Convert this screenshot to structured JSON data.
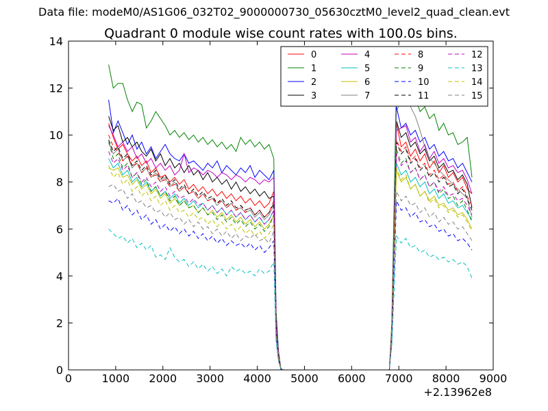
{
  "figure": {
    "suptitle": "Data file: modeM0/AS1G06_032T02_9000000730_05630cztM0_level2_quad_clean.evt"
  },
  "chart_data": {
    "type": "line",
    "title": "Quadrant 0 module wise count rates with 100.0s bins.",
    "xlabel": "",
    "ylabel": "",
    "xlim": [
      0,
      9000
    ],
    "ylim": [
      0,
      14
    ],
    "x_offset_label": "+2.13962e8",
    "x_ticks": [
      0,
      1000,
      2000,
      3000,
      4000,
      5000,
      6000,
      7000,
      8000,
      9000
    ],
    "y_ticks": [
      0,
      2,
      4,
      6,
      8,
      10,
      12,
      14
    ],
    "grid": false,
    "legend_position": "top-right",
    "legend_columns": 4,
    "x": [
      850,
      950,
      1050,
      1150,
      1250,
      1350,
      1450,
      1550,
      1650,
      1750,
      1850,
      1950,
      2050,
      2150,
      2250,
      2350,
      2450,
      2550,
      2650,
      2750,
      2850,
      2950,
      3050,
      3150,
      3250,
      3350,
      3450,
      3550,
      3650,
      3750,
      3850,
      3950,
      4050,
      4150,
      4250,
      4350,
      4400,
      4450,
      4500,
      4550,
      4600,
      4700,
      4800,
      4900,
      5000,
      5500,
      6000,
      6500,
      6800,
      6850,
      6950,
      7050,
      7150,
      7250,
      7350,
      7450,
      7550,
      7650,
      7750,
      7850,
      7950,
      8050,
      8150,
      8250,
      8350,
      8450,
      8550
    ],
    "series": [
      {
        "name": "0",
        "color": "#ff0000",
        "dash": "solid",
        "values": [
          10.5,
          9.9,
          9.4,
          9.6,
          9.2,
          8.9,
          9.1,
          8.7,
          8.9,
          8.4,
          8.6,
          8.2,
          8.3,
          8.0,
          8.2,
          7.9,
          8.1,
          7.7,
          7.9,
          7.6,
          7.8,
          7.5,
          7.7,
          7.4,
          7.6,
          7.3,
          7.5,
          7.2,
          7.4,
          7.1,
          7.3,
          7.0,
          7.2,
          6.9,
          7.1,
          7.6,
          2.0,
          0.6,
          0.05,
          0,
          0,
          0,
          0,
          0,
          0,
          0,
          0,
          0,
          0,
          1.5,
          10.5,
          9.5,
          9.7,
          9.1,
          9.4,
          8.9,
          9.2,
          8.6,
          8.9,
          8.4,
          8.7,
          8.2,
          8.4,
          8.0,
          8.2,
          7.7,
          7.5
        ]
      },
      {
        "name": "1",
        "color": "#008000",
        "dash": "solid",
        "values": [
          13.0,
          12.0,
          12.2,
          12.2,
          11.5,
          11.0,
          11.4,
          11.3,
          10.3,
          10.6,
          11.0,
          10.7,
          10.4,
          10.0,
          10.2,
          9.9,
          10.1,
          9.8,
          10.0,
          9.7,
          9.9,
          9.6,
          9.8,
          9.5,
          9.7,
          9.4,
          9.6,
          9.3,
          9.9,
          9.6,
          9.8,
          9.5,
          9.7,
          9.4,
          9.6,
          9.0,
          2.5,
          0.8,
          0.06,
          0,
          0,
          0,
          0,
          0,
          0,
          0,
          0,
          0,
          0,
          2.0,
          12.3,
          11.8,
          12.0,
          11.3,
          11.6,
          11.0,
          11.2,
          10.7,
          10.9,
          10.2,
          10.5,
          10.0,
          10.1,
          9.6,
          9.7,
          9.9,
          8.2
        ]
      },
      {
        "name": "2",
        "color": "#0000ff",
        "dash": "solid",
        "values": [
          11.5,
          10.1,
          10.6,
          10.1,
          9.6,
          10.0,
          9.4,
          9.7,
          9.2,
          9.5,
          9.0,
          9.3,
          9.6,
          9.2,
          9.0,
          8.9,
          9.2,
          8.8,
          8.9,
          8.7,
          8.5,
          8.8,
          8.6,
          8.9,
          8.4,
          8.7,
          8.5,
          8.3,
          8.6,
          8.4,
          8.7,
          8.2,
          8.5,
          8.3,
          8.1,
          8.5,
          2.2,
          0.7,
          0.05,
          0,
          0,
          0,
          0,
          0,
          0,
          0,
          0,
          0,
          0,
          1.8,
          11.2,
          10.3,
          10.5,
          10.0,
          10.2,
          9.7,
          9.9,
          9.4,
          9.6,
          9.1,
          9.3,
          8.9,
          9.0,
          8.6,
          8.8,
          8.4,
          8.0
        ]
      },
      {
        "name": "3",
        "color": "#000000",
        "dash": "solid",
        "values": [
          10.8,
          10.2,
          10.4,
          9.7,
          9.9,
          9.5,
          9.7,
          9.3,
          9.1,
          9.4,
          8.9,
          9.2,
          8.7,
          9.0,
          8.6,
          8.8,
          8.4,
          8.7,
          8.3,
          8.5,
          8.1,
          8.4,
          8.0,
          8.2,
          7.9,
          8.1,
          7.7,
          8.0,
          7.6,
          7.8,
          7.5,
          7.7,
          7.4,
          7.6,
          7.3,
          7.4,
          1.9,
          0.6,
          0.05,
          0,
          0,
          0,
          0,
          0,
          0,
          0,
          0,
          0,
          0,
          1.6,
          10.6,
          9.9,
          10.1,
          9.5,
          9.7,
          9.2,
          9.4,
          8.9,
          9.1,
          8.6,
          8.8,
          8.4,
          8.5,
          8.1,
          8.3,
          7.9,
          6.9
        ]
      },
      {
        "name": "4",
        "color": "#bf00bf",
        "dash": "solid",
        "values": [
          10.4,
          10.0,
          9.5,
          9.7,
          9.3,
          9.5,
          9.0,
          9.2,
          8.8,
          9.0,
          8.6,
          8.8,
          8.5,
          8.7,
          8.3,
          8.5,
          9.2,
          8.4,
          8.6,
          8.5,
          8.3,
          8.5,
          8.4,
          8.2,
          8.4,
          8.3,
          8.1,
          8.3,
          8.2,
          8.0,
          8.2,
          8.1,
          7.9,
          8.1,
          8.0,
          8.2,
          2.1,
          0.7,
          0.05,
          0,
          0,
          0,
          0,
          0,
          0,
          0,
          0,
          0,
          0,
          1.7,
          10.2,
          10.3,
          10.4,
          9.7,
          9.9,
          9.3,
          9.6,
          9.0,
          9.3,
          8.8,
          9.0,
          8.6,
          8.7,
          8.4,
          8.5,
          8.1,
          7.5
        ]
      },
      {
        "name": "5",
        "color": "#00bfbf",
        "dash": "solid",
        "values": [
          9.0,
          8.6,
          8.8,
          8.3,
          8.5,
          8.0,
          8.2,
          7.8,
          8.0,
          7.6,
          7.8,
          7.4,
          7.6,
          7.3,
          7.5,
          7.1,
          7.3,
          7.0,
          7.2,
          6.9,
          7.1,
          6.8,
          7.0,
          6.7,
          6.9,
          6.6,
          6.8,
          6.5,
          6.7,
          6.4,
          6.6,
          6.3,
          6.5,
          6.2,
          6.4,
          6.8,
          1.8,
          0.5,
          0.04,
          0,
          0,
          0,
          0,
          0,
          0,
          0,
          0,
          0,
          0,
          1.4,
          8.8,
          8.3,
          8.5,
          8.0,
          8.2,
          7.8,
          8.0,
          7.5,
          7.7,
          7.3,
          7.5,
          7.1,
          7.2,
          6.9,
          7.0,
          6.7,
          6.4
        ]
      },
      {
        "name": "6",
        "color": "#bfbf00",
        "dash": "solid",
        "values": [
          8.6,
          8.5,
          8.6,
          8.2,
          8.3,
          7.9,
          8.1,
          7.7,
          7.9,
          7.5,
          7.7,
          7.3,
          7.5,
          7.1,
          7.3,
          7.0,
          7.2,
          6.9,
          7.0,
          6.7,
          6.9,
          6.6,
          6.8,
          6.5,
          6.7,
          6.4,
          6.6,
          6.3,
          6.5,
          6.2,
          6.4,
          6.1,
          6.3,
          6.0,
          6.2,
          6.6,
          1.7,
          0.5,
          0.04,
          0,
          0,
          0,
          0,
          0,
          0,
          0,
          0,
          0,
          0,
          1.4,
          8.5,
          8.0,
          8.2,
          7.7,
          7.9,
          7.4,
          7.6,
          7.2,
          7.4,
          7.0,
          7.1,
          6.8,
          6.9,
          6.6,
          6.7,
          6.4,
          6.0
        ]
      },
      {
        "name": "7",
        "color": "#808080",
        "dash": "solid",
        "values": [
          9.7,
          9.2,
          9.4,
          8.9,
          9.1,
          8.6,
          8.8,
          8.4,
          8.6,
          8.2,
          8.4,
          8.0,
          8.2,
          7.8,
          8.0,
          7.6,
          7.8,
          7.5,
          7.6,
          7.3,
          7.5,
          7.2,
          7.3,
          7.0,
          7.2,
          6.9,
          7.1,
          6.8,
          6.9,
          6.7,
          6.8,
          6.5,
          6.7,
          6.4,
          6.6,
          7.0,
          1.8,
          0.6,
          0.04,
          0,
          0,
          0,
          0,
          0,
          0,
          0,
          0,
          0,
          0,
          1.9,
          11.0,
          11.5,
          12.2,
          11.2,
          10.8,
          10.2,
          9.5,
          9.0,
          8.8,
          8.5,
          8.3,
          8.1,
          7.9,
          7.7,
          7.5,
          7.3,
          6.5
        ]
      },
      {
        "name": "8",
        "color": "#ff0000",
        "dash": "dashed",
        "values": [
          10.0,
          9.5,
          9.3,
          8.9,
          9.1,
          8.7,
          8.8,
          8.4,
          8.6,
          8.2,
          8.3,
          8.0,
          8.1,
          7.8,
          7.9,
          7.6,
          7.8,
          7.5,
          7.6,
          7.3,
          7.5,
          7.2,
          7.3,
          7.1,
          7.2,
          6.9,
          7.1,
          6.8,
          7.0,
          6.7,
          6.9,
          6.6,
          6.8,
          6.5,
          6.7,
          7.2,
          1.9,
          0.6,
          0.05,
          0,
          0,
          0,
          0,
          0,
          0,
          0,
          0,
          0,
          0,
          1.5,
          9.8,
          9.3,
          9.5,
          8.9,
          9.1,
          8.6,
          8.8,
          8.3,
          8.5,
          8.1,
          8.3,
          7.9,
          8.0,
          7.6,
          7.8,
          7.4,
          7.0
        ]
      },
      {
        "name": "9",
        "color": "#008000",
        "dash": "dashed",
        "values": [
          9.7,
          9.0,
          9.2,
          8.6,
          8.8,
          8.2,
          8.4,
          7.9,
          8.1,
          7.6,
          7.8,
          7.4,
          7.6,
          7.2,
          7.4,
          7.0,
          7.2,
          6.9,
          7.0,
          6.7,
          6.9,
          6.6,
          6.7,
          6.4,
          6.6,
          6.3,
          6.5,
          6.2,
          6.4,
          6.1,
          6.3,
          6.0,
          6.2,
          5.9,
          6.1,
          6.6,
          1.7,
          0.5,
          0.04,
          0,
          0,
          0,
          0,
          0,
          0,
          0,
          0,
          0,
          0,
          1.4,
          9.4,
          8.8,
          9.0,
          8.4,
          8.6,
          8.1,
          8.3,
          7.8,
          8.0,
          7.5,
          7.7,
          7.3,
          7.4,
          7.0,
          7.2,
          6.8,
          6.3
        ]
      },
      {
        "name": "10",
        "color": "#0000ff",
        "dash": "dashed",
        "values": [
          7.2,
          7.1,
          7.3,
          6.8,
          7.0,
          6.6,
          6.8,
          6.4,
          6.6,
          6.2,
          6.4,
          6.0,
          6.2,
          5.9,
          6.1,
          5.8,
          6.0,
          5.7,
          5.9,
          5.6,
          5.8,
          5.5,
          5.7,
          5.4,
          5.6,
          5.3,
          5.5,
          5.3,
          5.4,
          5.2,
          5.4,
          5.1,
          5.3,
          5.0,
          5.2,
          5.5,
          1.4,
          0.4,
          0.03,
          0,
          0,
          0,
          0,
          0,
          0,
          0,
          0,
          0,
          0,
          1.2,
          7.2,
          6.8,
          6.9,
          6.5,
          6.7,
          6.3,
          6.4,
          6.1,
          6.2,
          5.9,
          6.0,
          5.7,
          5.8,
          5.5,
          5.6,
          5.4,
          5.1
        ]
      },
      {
        "name": "11",
        "color": "#000000",
        "dash": "dashed",
        "values": [
          9.8,
          9.3,
          9.5,
          9.0,
          9.2,
          8.7,
          8.9,
          8.5,
          8.7,
          8.3,
          8.5,
          8.1,
          8.3,
          7.9,
          8.1,
          7.7,
          7.9,
          7.5,
          7.7,
          7.4,
          7.6,
          7.3,
          7.4,
          7.1,
          7.3,
          7.0,
          7.2,
          6.9,
          7.0,
          6.8,
          6.9,
          6.6,
          6.8,
          6.5,
          6.7,
          7.1,
          1.9,
          0.6,
          0.05,
          0,
          0,
          0,
          0,
          0,
          0,
          0,
          0,
          0,
          0,
          1.5,
          9.7,
          9.2,
          9.4,
          8.8,
          9.0,
          8.5,
          8.7,
          8.2,
          8.4,
          8.0,
          8.2,
          7.8,
          7.9,
          7.5,
          7.7,
          7.3,
          6.8
        ]
      },
      {
        "name": "12",
        "color": "#bf00bf",
        "dash": "dashed",
        "values": [
          9.3,
          8.8,
          9.0,
          8.5,
          8.7,
          8.2,
          8.4,
          8.0,
          8.2,
          7.8,
          8.0,
          7.6,
          7.8,
          7.4,
          7.6,
          7.3,
          7.4,
          7.1,
          7.3,
          7.0,
          7.1,
          6.8,
          7.0,
          6.7,
          6.9,
          6.6,
          6.8,
          6.5,
          6.7,
          6.4,
          6.6,
          6.3,
          6.5,
          6.2,
          6.4,
          6.8,
          1.8,
          0.5,
          0.04,
          0,
          0,
          0,
          0,
          0,
          0,
          0,
          0,
          0,
          0,
          1.5,
          9.2,
          8.7,
          8.9,
          8.4,
          8.6,
          8.1,
          8.3,
          7.8,
          8.0,
          7.6,
          7.8,
          7.4,
          7.5,
          7.2,
          7.3,
          7.0,
          6.6
        ]
      },
      {
        "name": "13",
        "color": "#00bfbf",
        "dash": "dashed",
        "values": [
          6.0,
          5.8,
          5.6,
          5.7,
          5.4,
          5.6,
          5.2,
          5.4,
          5.1,
          5.3,
          4.8,
          4.9,
          4.7,
          5.2,
          4.8,
          4.6,
          4.7,
          4.4,
          4.6,
          4.3,
          4.5,
          4.2,
          4.4,
          4.1,
          4.3,
          4.0,
          4.4,
          4.2,
          4.3,
          4.1,
          4.2,
          4.0,
          4.3,
          4.1,
          4.2,
          4.6,
          1.2,
          0.4,
          0.03,
          0,
          0,
          0,
          0,
          0,
          0,
          0,
          0,
          0,
          0,
          1.0,
          5.7,
          5.4,
          5.6,
          5.2,
          5.3,
          5.0,
          5.1,
          4.8,
          4.9,
          4.7,
          4.8,
          4.6,
          4.7,
          4.5,
          4.6,
          4.4,
          3.9
        ]
      },
      {
        "name": "14",
        "color": "#bfbf00",
        "dash": "dashed",
        "values": [
          8.7,
          8.2,
          8.4,
          7.9,
          8.1,
          7.6,
          7.8,
          7.4,
          7.6,
          7.2,
          7.4,
          7.0,
          7.2,
          6.8,
          7.0,
          6.7,
          6.8,
          6.5,
          6.7,
          6.4,
          6.5,
          6.2,
          6.4,
          6.1,
          6.3,
          6.0,
          6.2,
          5.9,
          6.1,
          5.8,
          6.0,
          5.7,
          5.9,
          5.6,
          5.8,
          6.2,
          1.6,
          0.5,
          0.04,
          0,
          0,
          0,
          0,
          0,
          0,
          0,
          0,
          0,
          0,
          1.4,
          8.6,
          8.1,
          8.3,
          7.7,
          7.9,
          7.4,
          7.6,
          7.1,
          7.3,
          6.9,
          7.0,
          6.7,
          6.8,
          6.5,
          6.6,
          6.3,
          5.9
        ]
      },
      {
        "name": "15",
        "color": "#808080",
        "dash": "dashed",
        "values": [
          7.8,
          7.9,
          7.6,
          7.7,
          7.3,
          7.5,
          7.1,
          7.2,
          6.9,
          7.0,
          6.7,
          6.8,
          6.5,
          6.7,
          6.4,
          6.5,
          6.2,
          6.4,
          6.1,
          6.3,
          6.0,
          6.1,
          5.8,
          6.0,
          5.7,
          5.9,
          5.6,
          5.8,
          5.5,
          5.7,
          5.6,
          5.8,
          5.5,
          5.6,
          5.4,
          5.9,
          1.5,
          0.4,
          0.03,
          0,
          0,
          0,
          0,
          0,
          0,
          0,
          0,
          0,
          0,
          1.3,
          7.6,
          7.2,
          7.4,
          7.0,
          7.1,
          6.7,
          6.9,
          6.5,
          6.7,
          6.3,
          6.5,
          6.2,
          6.3,
          6.0,
          6.1,
          5.8,
          5.5
        ]
      }
    ]
  }
}
